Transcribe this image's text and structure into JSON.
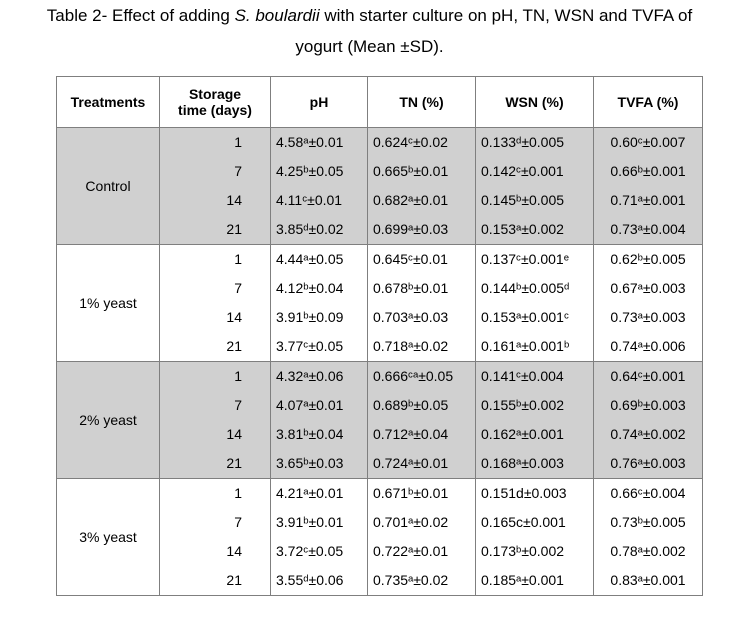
{
  "caption": {
    "line1_a": "Table 2- Effect of adding ",
    "line1_species": "S. boulardii",
    "line1_b": " with starter culture on pH, TN, WSN and TVFA of",
    "line2": "yogurt (Mean ±SD)."
  },
  "headers": {
    "treatments": "Treatments",
    "storage_line1": "Storage",
    "storage_line2": "time (days)",
    "ph": "pH",
    "tn": "TN (%)",
    "wsn": "WSN (%)",
    "tvfa": "TVFA (%)"
  },
  "groups": [
    {
      "name": "Control",
      "rows": [
        {
          "day": "1",
          "ph": "4.58ᵃ±0.01",
          "tn": "0.624ᶜ±0.02",
          "wsn": "0.133ᵈ±0.005",
          "tvfa": "0.60ᶜ±0.007"
        },
        {
          "day": "7",
          "ph": "4.25ᵇ±0.05",
          "tn": "0.665ᵇ±0.01",
          "wsn": "0.142ᶜ±0.001",
          "tvfa": "0.66ᵇ±0.001"
        },
        {
          "day": "14",
          "ph": "4.11ᶜ±0.01",
          "tn": "0.682ᵃ±0.01",
          "wsn": "0.145ᵇ±0.005",
          "tvfa": "0.71ᵃ±0.001"
        },
        {
          "day": "21",
          "ph": "3.85ᵈ±0.02",
          "tn": "0.699ᵃ±0.03",
          "wsn": "0.153ᵃ±0.002",
          "tvfa": "0.73ᵃ±0.004"
        }
      ]
    },
    {
      "name": "1% yeast",
      "rows": [
        {
          "day": "1",
          "ph": "4.44ᵃ±0.05",
          "tn": "0.645ᶜ±0.01",
          "wsn": "0.137ᶜ±0.001ᵉ",
          "tvfa": "0.62ᵇ±0.005"
        },
        {
          "day": "7",
          "ph": "4.12ᵇ±0.04",
          "tn": "0.678ᵇ±0.01",
          "wsn": "0.144ᵇ±0.005ᵈ",
          "tvfa": "0.67ᵃ±0.003"
        },
        {
          "day": "14",
          "ph": "3.91ᵇ±0.09",
          "tn": "0.703ᵃ±0.03",
          "wsn": "0.153ᵃ±0.001ᶜ",
          "tvfa": "0.73ᵃ±0.003"
        },
        {
          "day": "21",
          "ph": "3.77ᶜ±0.05",
          "tn": "0.718ᵃ±0.02",
          "wsn": "0.161ᵃ±0.001ᵇ",
          "tvfa": "0.74ᵃ±0.006"
        }
      ]
    },
    {
      "name": "2% yeast",
      "rows": [
        {
          "day": "1",
          "ph": "4.32ᵃ±0.06",
          "tn": "0.666ᶜᵃ±0.05",
          "wsn": "0.141ᶜ±0.004",
          "tvfa": "0.64ᶜ±0.001"
        },
        {
          "day": "7",
          "ph": "4.07ᵃ±0.01",
          "tn": "0.689ᵇ±0.05",
          "wsn": "0.155ᵇ±0.002",
          "tvfa": "0.69ᵇ±0.003"
        },
        {
          "day": "14",
          "ph": "3.81ᵇ±0.04",
          "tn": "0.712ᵃ±0.04",
          "wsn": "0.162ᵃ±0.001",
          "tvfa": "0.74ᵃ±0.002"
        },
        {
          "day": "21",
          "ph": "3.65ᵇ±0.03",
          "tn": "0.724ᵃ±0.01",
          "wsn": "0.168ᵃ±0.003",
          "tvfa": "0.76ᵃ±0.003"
        }
      ]
    },
    {
      "name": "3% yeast",
      "rows": [
        {
          "day": "1",
          "ph": "4.21ᵃ±0.01",
          "tn": "0.671ᵇ±0.01",
          "wsn": "0.151d±0.003",
          "tvfa": "0.66ᶜ±0.004"
        },
        {
          "day": "7",
          "ph": "3.91ᵇ±0.01",
          "tn": "0.701ᵃ±0.02",
          "wsn": "0.165c±0.001",
          "tvfa": "0.73ᵇ±0.005"
        },
        {
          "day": "14",
          "ph": "3.72ᶜ±0.05",
          "tn": "0.722ᵃ±0.01",
          "wsn": "0.173ᵇ±0.002",
          "tvfa": "0.78ᵃ±0.002"
        },
        {
          "day": "21",
          "ph": "3.55ᵈ±0.06",
          "tn": "0.735ᵃ±0.02",
          "wsn": "0.185ᵃ±0.001",
          "tvfa": "0.83ᵃ±0.001"
        }
      ]
    }
  ],
  "colors": {
    "shaded_group": "#d0d0d0",
    "plain_group": "#ffffff",
    "grid": "#7f7f7f"
  }
}
